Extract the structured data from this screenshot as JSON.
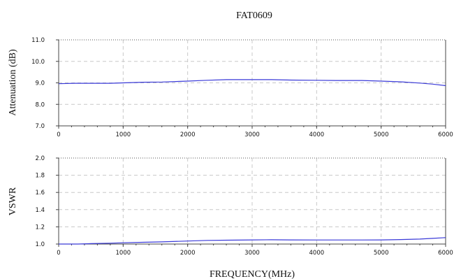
{
  "chart_data": [
    {
      "type": "line",
      "title": "FAT0609",
      "xlabel": "",
      "ylabel": "Attenuation (dB)",
      "xlim": [
        0,
        6000
      ],
      "ylim": [
        7.0,
        11.0
      ],
      "x_ticks": [
        "0",
        "1000",
        "2000",
        "3000",
        "4000",
        "5000",
        "6000"
      ],
      "y_ticks": [
        "7.0",
        "8.0",
        "9.0",
        "10.0",
        "11.0"
      ],
      "grid": true,
      "series": [
        {
          "color": "#3a3ad8",
          "x": [
            0,
            250,
            500,
            800,
            1000,
            1300,
            1600,
            2000,
            2300,
            2600,
            3000,
            3300,
            3600,
            4000,
            4300,
            4700,
            5000,
            5300,
            5600,
            5800,
            6000
          ],
          "y": [
            8.96,
            8.98,
            8.98,
            8.98,
            9.0,
            9.03,
            9.04,
            9.08,
            9.12,
            9.15,
            9.15,
            9.15,
            9.13,
            9.12,
            9.11,
            9.11,
            9.08,
            9.05,
            8.99,
            8.94,
            8.87
          ]
        }
      ]
    },
    {
      "type": "line",
      "title": "",
      "xlabel": "FREQUENCY(MHz)",
      "ylabel": "VSWR",
      "xlim": [
        0,
        6000
      ],
      "ylim": [
        1.0,
        2.0
      ],
      "x_ticks": [
        "0",
        "1000",
        "2000",
        "3000",
        "4000",
        "5000",
        "6000"
      ],
      "y_ticks": [
        "1.0",
        "1.2",
        "1.4",
        "1.6",
        "1.8",
        "2.0"
      ],
      "grid": true,
      "series": [
        {
          "color": "#3a3ad8",
          "x": [
            0,
            300,
            500,
            800,
            1000,
            1300,
            1600,
            2000,
            2300,
            2600,
            3000,
            3300,
            3600,
            4000,
            4300,
            4700,
            5000,
            5300,
            5600,
            5800,
            6000
          ],
          "y": [
            1.0,
            1.0,
            1.005,
            1.01,
            1.015,
            1.02,
            1.025,
            1.035,
            1.042,
            1.045,
            1.048,
            1.05,
            1.048,
            1.047,
            1.047,
            1.047,
            1.048,
            1.052,
            1.058,
            1.066,
            1.075
          ]
        }
      ]
    }
  ]
}
